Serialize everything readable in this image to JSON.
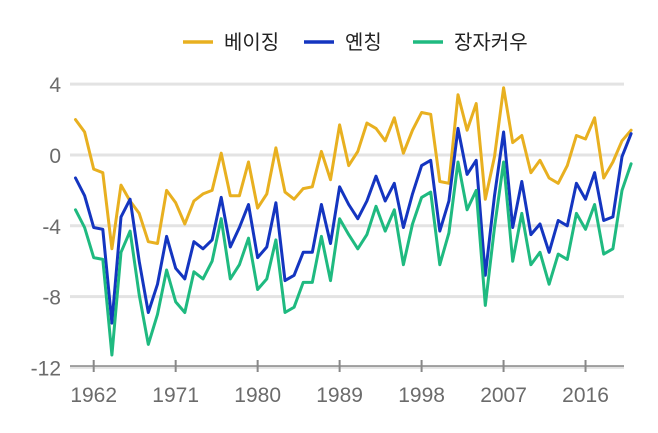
{
  "chart_data": {
    "type": "line",
    "title": "",
    "xlabel": "",
    "ylabel": "",
    "x_start": 1960,
    "x_end": 2021,
    "xlim": [
      1958.3,
      2022.2
    ],
    "ylim": [
      -12.6,
      4.8
    ],
    "y_ticks": [
      4,
      0,
      -4,
      -8,
      -12
    ],
    "y_tick_labels": [
      "4",
      "0",
      "-4",
      "-8",
      "-12"
    ],
    "x_ticks": [
      1962,
      1971,
      1980,
      1989,
      1998,
      2007,
      2016
    ],
    "x_tick_labels": [
      "1962",
      "1971",
      "1980",
      "1989",
      "1998",
      "2007",
      "2016"
    ],
    "grid": "horizontal",
    "legend_position": "top-center",
    "series": [
      {
        "name": "베이징",
        "color": "#e8b020",
        "values": [
          2.0,
          1.3,
          -0.8,
          -1.0,
          -5.3,
          -1.7,
          -2.6,
          -3.3,
          -4.9,
          -5.0,
          -2.0,
          -2.7,
          -3.9,
          -2.6,
          -2.2,
          -2.0,
          0.1,
          -2.3,
          -2.3,
          -0.4,
          -3.0,
          -2.2,
          0.4,
          -2.1,
          -2.5,
          -1.9,
          -1.8,
          0.2,
          -1.4,
          1.7,
          -0.6,
          0.2,
          1.8,
          1.5,
          0.8,
          2.1,
          0.1,
          1.4,
          2.4,
          2.3,
          -1.5,
          -1.6,
          3.4,
          1.4,
          2.9,
          -2.5,
          -0.1,
          3.8,
          0.7,
          1.1,
          -1.0,
          -0.3,
          -1.3,
          -1.6,
          -0.6,
          1.1,
          0.9,
          2.1,
          -1.3,
          -0.4,
          0.8,
          1.4
        ]
      },
      {
        "name": "옌칭",
        "color": "#1435c0",
        "values": [
          -1.3,
          -2.3,
          -4.1,
          -4.2,
          -9.5,
          -3.5,
          -2.5,
          -6.0,
          -8.9,
          -7.3,
          -4.6,
          -6.4,
          -7.0,
          -4.9,
          -5.3,
          -4.8,
          -2.4,
          -5.2,
          -4.1,
          -2.8,
          -5.8,
          -5.2,
          -2.7,
          -7.1,
          -6.8,
          -5.5,
          -5.5,
          -2.8,
          -5.0,
          -1.8,
          -2.8,
          -3.6,
          -2.6,
          -1.2,
          -2.6,
          -1.6,
          -4.1,
          -2.2,
          -0.6,
          -0.3,
          -4.3,
          -2.6,
          1.5,
          -1.1,
          -0.3,
          -6.8,
          -2.3,
          1.3,
          -4.1,
          -1.5,
          -4.5,
          -3.9,
          -5.5,
          -3.7,
          -4.0,
          -1.6,
          -2.5,
          -1.0,
          -3.7,
          -3.5,
          -0.1,
          1.2
        ]
      },
      {
        "name": "장자커우",
        "color": "#1fba80",
        "values": [
          -3.1,
          -4.1,
          -5.8,
          -5.9,
          -11.3,
          -5.5,
          -4.3,
          -7.9,
          -10.7,
          -9.0,
          -6.5,
          -8.3,
          -8.9,
          -6.6,
          -7.0,
          -6.0,
          -3.6,
          -7.0,
          -6.2,
          -4.7,
          -7.6,
          -7.0,
          -4.8,
          -8.9,
          -8.6,
          -7.2,
          -7.2,
          -4.6,
          -7.1,
          -3.6,
          -4.5,
          -5.3,
          -4.5,
          -2.9,
          -4.3,
          -3.1,
          -6.2,
          -3.9,
          -2.4,
          -2.1,
          -6.2,
          -4.4,
          -0.4,
          -3.1,
          -2.0,
          -8.5,
          -4.1,
          -0.4,
          -6.0,
          -3.3,
          -6.2,
          -5.5,
          -7.3,
          -5.6,
          -5.9,
          -3.3,
          -4.2,
          -2.8,
          -5.6,
          -5.3,
          -2.0,
          -0.5
        ]
      }
    ]
  }
}
